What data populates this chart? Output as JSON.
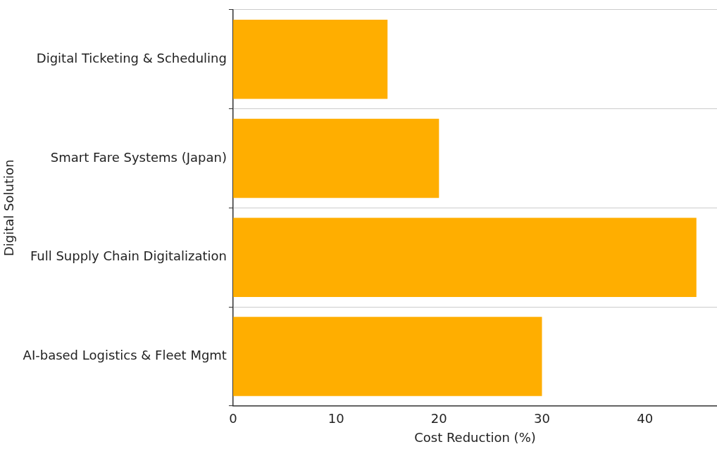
{
  "chart_data": {
    "type": "bar",
    "orientation": "horizontal",
    "xlabel": "Cost Reduction (%)",
    "ylabel": "Digital Solution",
    "categories": [
      "Digital Ticketing & Scheduling",
      "Smart Fare Systems (Japan)",
      "Full Supply Chain Digitalization",
      "AI-based Logistics & Fleet Mgmt"
    ],
    "values": [
      15,
      20,
      45,
      30
    ],
    "color": "#ffae00",
    "xlim": [
      0,
      47
    ],
    "xticks": [
      0,
      10,
      20,
      30,
      40
    ],
    "grid": "y"
  }
}
